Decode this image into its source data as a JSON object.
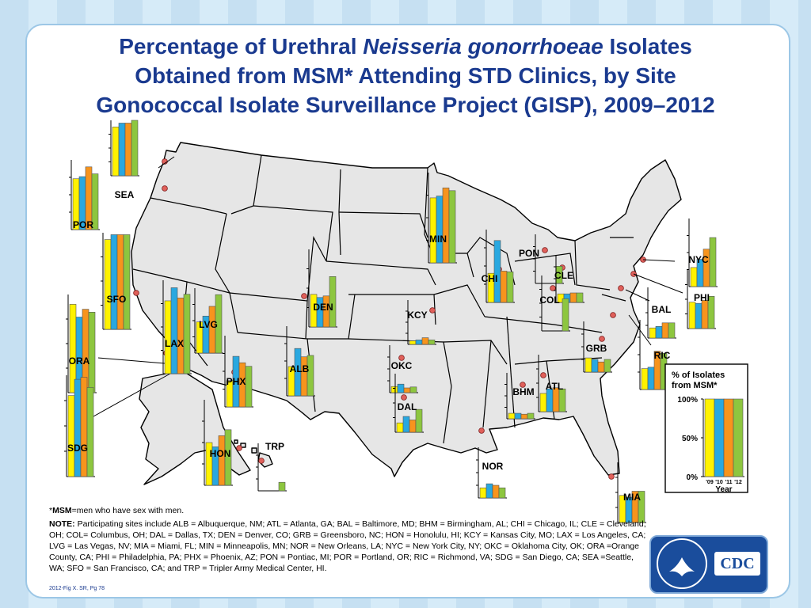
{
  "title": {
    "line1_pre": "Percentage of Urethral ",
    "line1_italic": "Neisseria gonorrhoeae",
    "line1_post": " Isolates",
    "line2": "Obtained from MSM* Attending STD Clinics, by Site",
    "line3": "Gonococcal Isolate Surveillance Project (GISP), 2009–2012"
  },
  "colors": [
    "#fff200",
    "#29a8e0",
    "#f7941d",
    "#8dc63f"
  ],
  "chart_data": {
    "type": "bar",
    "categories": [
      "'09",
      "'10",
      "'11",
      "'12"
    ],
    "ylim": [
      0,
      100
    ],
    "legend": {
      "title_line1": "% of Isolates",
      "title_line2": "from MSM*",
      "ticks": [
        "100%",
        "50%",
        "0%"
      ],
      "xlabel": "Year",
      "values": [
        100,
        100,
        100,
        100
      ]
    },
    "sites": [
      {
        "code": "SEA",
        "values": [
          88,
          95,
          95,
          100
        ]
      },
      {
        "code": "POR",
        "values": [
          73,
          76,
          90,
          80
        ]
      },
      {
        "code": "SFO",
        "values": [
          93,
          98,
          98,
          98
        ]
      },
      {
        "code": "ORA",
        "values": [
          90,
          77,
          85,
          82
        ]
      },
      {
        "code": "SDG",
        "values": [
          80,
          96,
          98,
          88
        ]
      },
      {
        "code": "LAX",
        "values": [
          78,
          92,
          81,
          85
        ]
      },
      {
        "code": "LVG",
        "values": [
          48,
          57,
          72,
          90
        ]
      },
      {
        "code": "PHX",
        "values": [
          37,
          71,
          62,
          57
        ]
      },
      {
        "code": "ALB",
        "values": [
          42,
          68,
          56,
          58
        ]
      },
      {
        "code": "HON",
        "values": [
          50,
          45,
          58,
          65
        ]
      },
      {
        "code": "TRP",
        "values": [
          0,
          0,
          0,
          18
        ]
      },
      {
        "code": "DEN",
        "values": [
          42,
          38,
          40,
          65
        ]
      },
      {
        "code": "MIN",
        "values": [
          72,
          74,
          83,
          80
        ]
      },
      {
        "code": "KCY",
        "values": [
          8,
          10,
          15,
          10
        ]
      },
      {
        "code": "OKC",
        "values": [
          13,
          18,
          10,
          12
        ]
      },
      {
        "code": "DAL",
        "values": [
          16,
          27,
          21,
          39
        ]
      },
      {
        "code": "CHI",
        "values": [
          40,
          85,
          43,
          42
        ]
      },
      {
        "code": "PON",
        "values": [
          0,
          0,
          0,
          35
        ]
      },
      {
        "code": "CLE",
        "values": [
          18,
          18,
          20,
          20
        ]
      },
      {
        "code": "COL",
        "values": [
          0,
          0,
          0,
          58
        ]
      },
      {
        "code": "NYC",
        "values": [
          28,
          40,
          55,
          72
        ]
      },
      {
        "code": "PHI",
        "values": [
          45,
          43,
          48,
          55
        ]
      },
      {
        "code": "BAL",
        "values": [
          20,
          23,
          30,
          30
        ]
      },
      {
        "code": "GRB",
        "values": [
          28,
          25,
          20,
          25
        ]
      },
      {
        "code": "RIC",
        "values": [
          30,
          32,
          55,
          52
        ]
      },
      {
        "code": "ATL",
        "values": [
          32,
          40,
          42,
          40
        ]
      },
      {
        "code": "BHM",
        "values": [
          12,
          12,
          10,
          12
        ]
      },
      {
        "code": "NOR",
        "values": [
          20,
          28,
          25,
          20
        ]
      },
      {
        "code": "MIA",
        "values": [
          45,
          42,
          52,
          52
        ]
      }
    ]
  },
  "footnote": {
    "msm_star": "*",
    "msm_bold": "MSM",
    "msm_text": "=men who have sex with men.",
    "note_bold": "NOTE:",
    "note_text": " Participating sites include ALB = Albuquerque, NM; ATL = Atlanta, GA; BAL = Baltimore, MD; BHM = Birmingham, AL; CHI = Chicago, IL; CLE = Cleveland, OH; COL= Columbus, OH; DAL = Dallas, TX; DEN = Denver, CO; GRB = Greensboro, NC; HON = Honolulu, HI; KCY = Kansas City, MO; LAX = Los Angeles, CA; LVG = Las Vegas, NV; MIA = Miami, FL; MIN = Minneapolis, MN; NOR = New Orleans, LA; NYC = New York City, NY; OKC = Oklahoma City, OK; ORA =Orange County, CA; PHI = Philadelphia, PA; PHX = Phoenix, AZ; PON = Pontiac, MI; POR = Portland, OR; RIC = Richmond, VA; SDG = San Diego, CA; SEA =Seattle, WA; SFO = San Francisco, CA; and TRP = Tripler Army Medical Center, HI."
  },
  "figure_id": "2012-Fig X.  SR, Pg 78",
  "cdc": {
    "logo_text": "CDC"
  }
}
